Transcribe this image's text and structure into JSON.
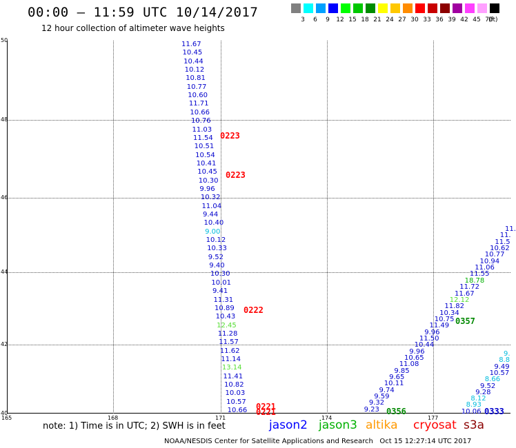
{
  "header": {
    "title": "00:00 – 11:59 UTC 10/14/2017",
    "subtitle": "12 hour collection of altimeter wave heights"
  },
  "color_scale": {
    "unit": "(ft)",
    "bins": [
      {
        "label": "3",
        "color": "#808080"
      },
      {
        "label": "6",
        "color": "#00ffff"
      },
      {
        "label": "9",
        "color": "#00a0ff"
      },
      {
        "label": "12",
        "color": "#0000ff"
      },
      {
        "label": "15",
        "color": "#00ff00"
      },
      {
        "label": "18",
        "color": "#00c800"
      },
      {
        "label": "21",
        "color": "#008c00"
      },
      {
        "label": "24",
        "color": "#ffff00"
      },
      {
        "label": "27",
        "color": "#ffc800"
      },
      {
        "label": "30",
        "color": "#ff8c00"
      },
      {
        "label": "33",
        "color": "#ff0000"
      },
      {
        "label": "36",
        "color": "#c80000"
      },
      {
        "label": "39",
        "color": "#8c0000"
      },
      {
        "label": "42",
        "color": "#a000a0"
      },
      {
        "label": "45",
        "color": "#ff40ff"
      },
      {
        "label": "70",
        "color": "#ffa0ff"
      },
      {
        "label": "",
        "color": "#000000"
      }
    ]
  },
  "axes": {
    "lat_ticks": [
      "50",
      "48",
      "46",
      "44",
      "42",
      "40"
    ],
    "lon_ticks": [
      "165",
      "168",
      "171",
      "174",
      "177"
    ]
  },
  "tracks": {
    "track1": {
      "values": [
        "11.67",
        "10.45",
        "10.44",
        "10.12",
        "10.81",
        "10.77",
        "10.60",
        "11.71",
        "10.66",
        "10.76",
        "11.03",
        "11.54",
        "10.51",
        "10.54",
        "10.41",
        "10.45",
        "10.30",
        "9.96",
        "10.32",
        "11.04",
        "9.44",
        "10.40",
        "9.00",
        "10.12",
        "10.33",
        "9.52",
        "9.40",
        "10.30",
        "10.01",
        "9.41",
        "11.31",
        "10.89",
        "10.43",
        "12.45",
        "11.28",
        "11.57",
        "11.62",
        "11.14",
        "13.14",
        "11.41",
        "10.82",
        "10.03",
        "10.57",
        "10.66"
      ],
      "time_tags": [
        "0223",
        "0223",
        "0222",
        "0221",
        "0221"
      ]
    },
    "track2": {
      "values": [
        "11.",
        "11.",
        "11.5",
        "10.62",
        "10.77",
        "10.94",
        "11.06",
        "11.55",
        "18.78",
        "11.72",
        "11.67",
        "12.12",
        "11.82",
        "10.34",
        "10.75",
        "11.49",
        "9.96",
        "11.50",
        "10.44",
        "9.96",
        "10.65",
        "11.08",
        "9.85",
        "9.65",
        "10.11",
        "9.74",
        "9.59",
        "9.32",
        "9.23"
      ],
      "time_tags": [
        "0357",
        "0356"
      ]
    },
    "track3": {
      "values": [
        "9.",
        "8.8",
        "9.49",
        "10.57",
        "8.66",
        "9.52",
        "9.28",
        "8.12",
        "8.93",
        "10.06"
      ],
      "time_tags": [
        "0333"
      ]
    }
  },
  "legend": {
    "note": "note: 1) Time is in UTC; 2) SWH is in feet",
    "missions": [
      {
        "name": "jason2",
        "color": "#0000ff"
      },
      {
        "name": "jason3",
        "color": "#00b000"
      },
      {
        "name": "altika",
        "color": "#ff9900"
      },
      {
        "name": "cryosat",
        "color": "#ff0000"
      },
      {
        "name": "s3a",
        "color": "#8b0000"
      }
    ]
  },
  "footer": {
    "credit": "NOAA/NESDIS Center for Satellite Applications and Research",
    "timestamp": "Oct 15 12:27:14 UTC 2017"
  }
}
